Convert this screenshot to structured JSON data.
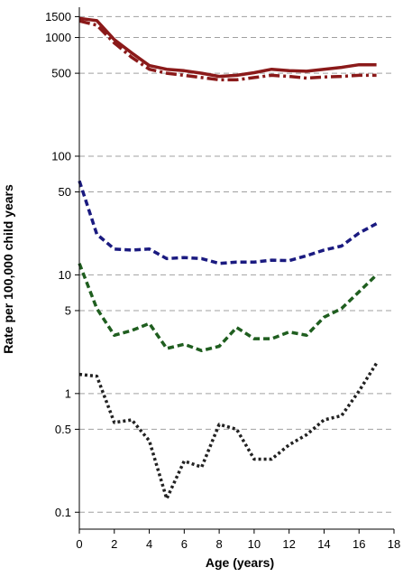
{
  "chart_data": {
    "type": "line",
    "xlabel": "Age (years)",
    "ylabel": "Rate per 100,000 child years",
    "xlim": [
      0,
      18
    ],
    "ylim": [
      0.08,
      1800
    ],
    "yscale": "log",
    "x_ticks": [
      0,
      2,
      4,
      6,
      8,
      10,
      12,
      14,
      16,
      18
    ],
    "y_ticks": [
      0.1,
      0.5,
      1,
      5,
      10,
      50,
      100,
      500,
      1000,
      1500
    ],
    "y_tick_labels": [
      "0.1",
      "0.5",
      "1",
      "5",
      "10",
      "50",
      "100",
      "500",
      "1000",
      "1500"
    ],
    "grid": "horizontal dashed",
    "x": [
      0,
      1,
      2,
      3,
      4,
      5,
      6,
      7,
      8,
      9,
      10,
      11,
      12,
      13,
      14,
      15,
      16,
      17
    ],
    "series": [
      {
        "color": "#8b1a1a",
        "style": "solid",
        "values": [
          1450,
          1390,
          960,
          740,
          580,
          540,
          525,
          500,
          470,
          480,
          505,
          540,
          525,
          520,
          540,
          560,
          590,
          590
        ]
      },
      {
        "color": "#8b1a1a",
        "style": "dashdot",
        "values": [
          1380,
          1270,
          900,
          680,
          540,
          500,
          480,
          460,
          440,
          440,
          460,
          480,
          470,
          455,
          465,
          470,
          480,
          480
        ]
      },
      {
        "color": "#1a1a80",
        "style": "dashed",
        "values": [
          62,
          22,
          16.5,
          16.2,
          16.5,
          13.7,
          14,
          13.7,
          12.5,
          12.8,
          12.8,
          13.3,
          13.2,
          14.5,
          16.2,
          17.5,
          22.5,
          27
        ]
      },
      {
        "color": "#1f5e1f",
        "style": "dashed",
        "values": [
          12.5,
          5.2,
          3.1,
          3.4,
          3.9,
          2.4,
          2.6,
          2.3,
          2.5,
          3.6,
          2.9,
          2.9,
          3.3,
          3.1,
          4.4,
          5.2,
          7.2,
          10
        ]
      },
      {
        "color": "#222222",
        "style": "dotted",
        "values": [
          1.45,
          1.4,
          0.57,
          0.6,
          0.4,
          0.13,
          0.27,
          0.24,
          0.55,
          0.5,
          0.28,
          0.28,
          0.37,
          0.45,
          0.6,
          0.65,
          1.05,
          1.8
        ]
      }
    ]
  }
}
